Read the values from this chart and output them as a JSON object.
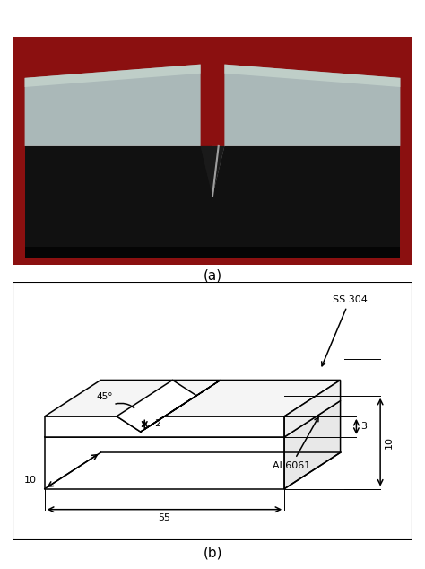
{
  "fig_width": 4.74,
  "fig_height": 6.34,
  "dpi": 100,
  "label_a": "(a)",
  "label_b": "(b)",
  "annotations": {
    "angle": "45°",
    "notch_depth": "2",
    "thickness_ss": "3",
    "total_height": "10",
    "width_label": "10",
    "length_label": "55",
    "mat_top": "SS 304",
    "mat_bot": "Al 6061"
  },
  "photo": {
    "bg_color": "#8B1010",
    "body_dark": "#111111",
    "metal_color": "#aab8b8",
    "metal_light": "#c8d8d0",
    "notch_inner": "#555555",
    "notch_highlight": "#c0c8c8"
  }
}
